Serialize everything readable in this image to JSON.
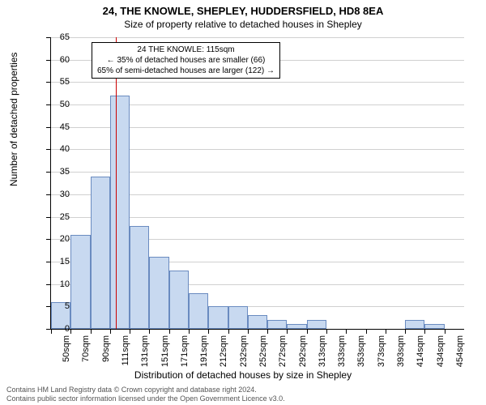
{
  "title_main": "24, THE KNOWLE, SHEPLEY, HUDDERSFIELD, HD8 8EA",
  "title_sub": "Size of property relative to detached houses in Shepley",
  "ylabel": "Number of detached properties",
  "xlabel": "Distribution of detached houses by size in Shepley",
  "chart": {
    "type": "histogram",
    "ylim": [
      0,
      65
    ],
    "ytick_step": 5,
    "bar_fill": "#c8d9f0",
    "bar_stroke": "#6a8bc0",
    "grid_color": "#d0d0d0",
    "background_color": "#ffffff",
    "marker_color": "#cc0000",
    "marker_x": 115,
    "x_categories": [
      "50sqm",
      "70sqm",
      "90sqm",
      "111sqm",
      "131sqm",
      "151sqm",
      "171sqm",
      "191sqm",
      "212sqm",
      "232sqm",
      "252sqm",
      "272sqm",
      "292sqm",
      "313sqm",
      "333sqm",
      "353sqm",
      "373sqm",
      "393sqm",
      "414sqm",
      "434sqm",
      "454sqm"
    ],
    "x_bounds": [
      50,
      464
    ],
    "values": [
      6,
      21,
      34,
      52,
      23,
      16,
      13,
      8,
      5,
      5,
      3,
      2,
      1,
      2,
      0,
      0,
      0,
      0,
      2,
      1,
      0
    ]
  },
  "annotation": {
    "line1": "24 THE KNOWLE: 115sqm",
    "line2": "← 35% of detached houses are smaller (66)",
    "line3": "65% of semi-detached houses are larger (122) →"
  },
  "footer": {
    "line1": "Contains HM Land Registry data © Crown copyright and database right 2024.",
    "line2": "Contains public sector information licensed under the Open Government Licence v3.0."
  }
}
